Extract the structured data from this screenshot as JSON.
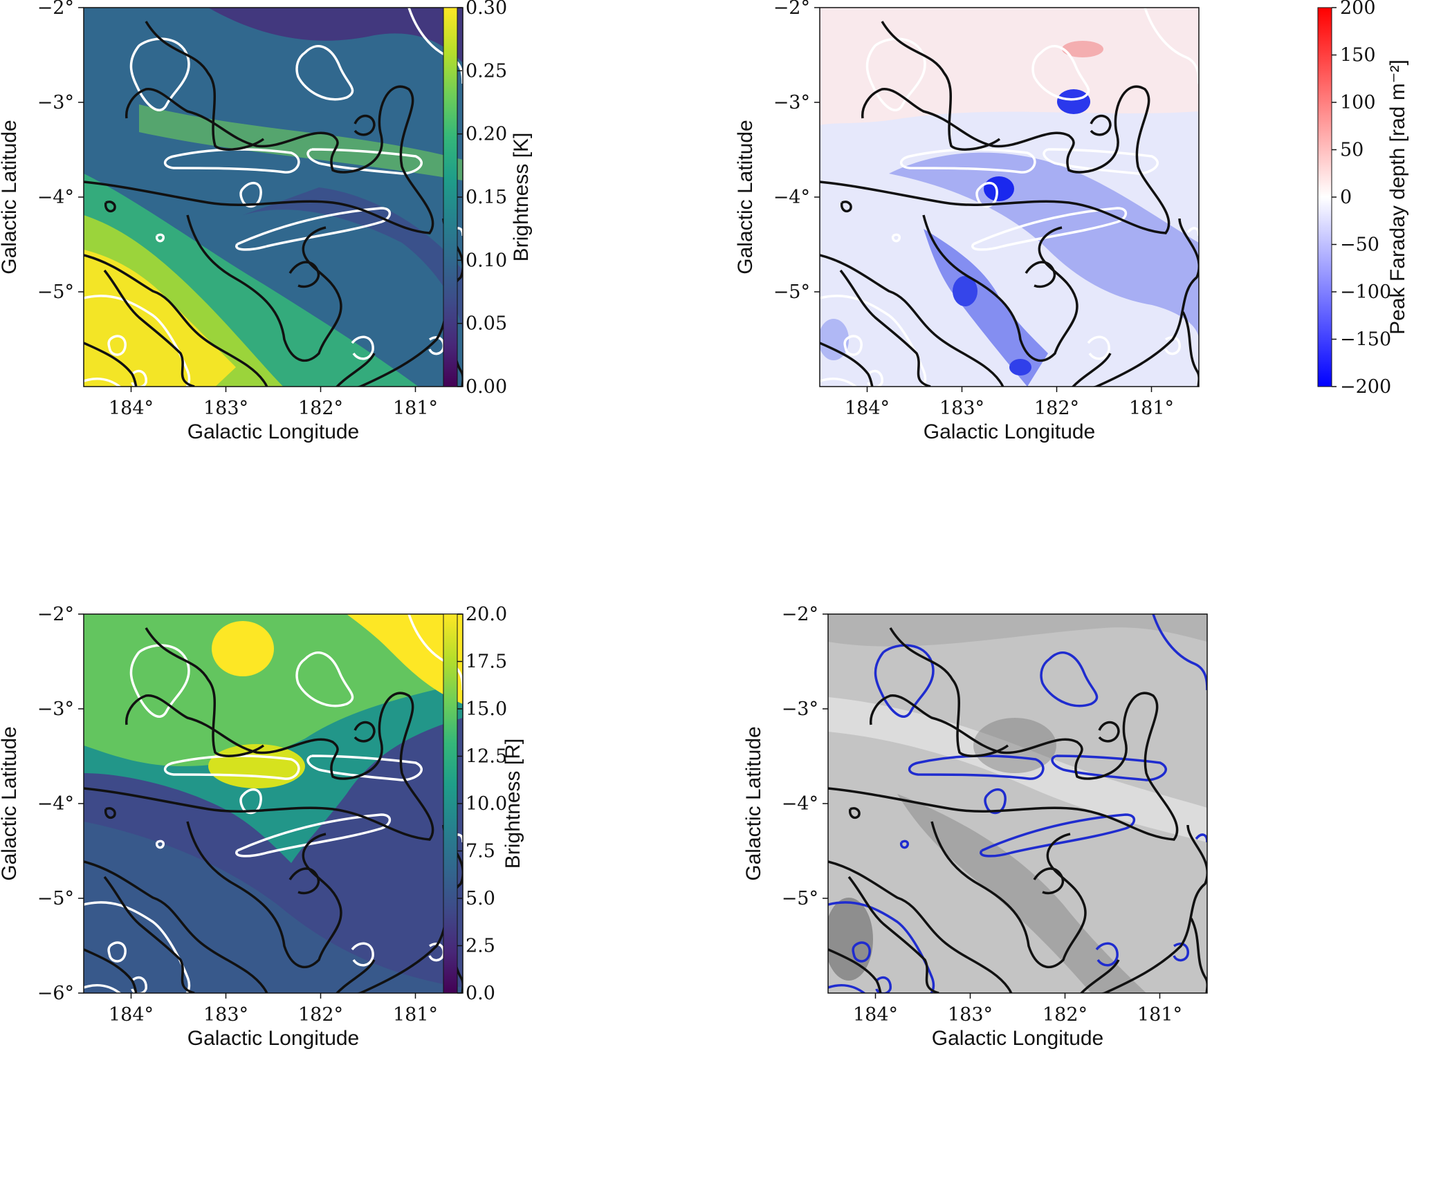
{
  "colors": {
    "contour_black": "#111111",
    "contour_white": "#ffffff",
    "contour_blue": "#1f2ccf",
    "viridis": [
      "#440154",
      "#482878",
      "#3e4a89",
      "#31688e",
      "#26828e",
      "#1f9e89",
      "#35b779",
      "#6ece58",
      "#b5de2b",
      "#fde725"
    ],
    "bwr": [
      "#0000ff",
      "#ffffff",
      "#ff0000"
    ],
    "gray": [
      "#000000",
      "#ffffff"
    ]
  },
  "chart_data": [
    {
      "id": "panel-top-left",
      "type": "heatmap",
      "title": "",
      "xlabel": "Galactic Longitude",
      "ylabel": "Galactic Latitude",
      "xlim": [
        184.5,
        180.5
      ],
      "ylim": [
        -6.0,
        -2.0
      ],
      "xticks": [
        184,
        183,
        182,
        181
      ],
      "xtick_labels": [
        "184°",
        "183°",
        "182°",
        "181°"
      ],
      "yticks": [
        -2,
        -3,
        -4,
        -5
      ],
      "ytick_labels": [
        "−2°",
        "−3°",
        "−4°",
        "−5°"
      ],
      "colormap": "viridis",
      "colorbar": {
        "label": "Brightness [K]",
        "range": [
          0.0,
          0.3
        ],
        "ticks": [
          0.0,
          0.05,
          0.1,
          0.15,
          0.2,
          0.25,
          0.3
        ],
        "tick_labels": [
          "0.00",
          "0.05",
          "0.10",
          "0.15",
          "0.20",
          "0.25",
          "0.30"
        ]
      },
      "contours": [
        "black",
        "white"
      ]
    },
    {
      "id": "panel-top-right",
      "type": "heatmap",
      "title": "",
      "xlabel": "Galactic Longitude",
      "ylabel": "Galactic Latitude",
      "xlim": [
        184.5,
        180.5
      ],
      "ylim": [
        -6.0,
        -2.0
      ],
      "xticks": [
        184,
        183,
        182,
        181
      ],
      "xtick_labels": [
        "184°",
        "183°",
        "182°",
        "181°"
      ],
      "yticks": [
        -2,
        -3,
        -4,
        -5
      ],
      "ytick_labels": [
        "−2°",
        "−3°",
        "−4°",
        "−5°"
      ],
      "colormap": "bwr",
      "colorbar": {
        "label": "Peak Faraday depth [rad m⁻²]",
        "range": [
          -200,
          200
        ],
        "ticks": [
          -200,
          -150,
          -100,
          -50,
          0,
          50,
          100,
          150,
          200
        ],
        "tick_labels": [
          "−200",
          "−150",
          "−100",
          "−50",
          "0",
          "50",
          "100",
          "150",
          "200"
        ]
      },
      "contours": [
        "black",
        "white"
      ]
    },
    {
      "id": "panel-bottom-left",
      "type": "heatmap",
      "title": "",
      "xlabel": "Galactic Longitude",
      "ylabel": "Galactic Latitude",
      "xlim": [
        184.5,
        180.5
      ],
      "ylim": [
        -6.0,
        -2.0
      ],
      "xticks": [
        184,
        183,
        182,
        181
      ],
      "xtick_labels": [
        "184°",
        "183°",
        "182°",
        "181°"
      ],
      "yticks": [
        -2,
        -3,
        -4,
        -5,
        -6
      ],
      "ytick_labels": [
        "−2°",
        "−3°",
        "−4°",
        "−5°",
        "−6°"
      ],
      "colormap": "viridis",
      "colorbar": {
        "label": "Brightness [R]",
        "range": [
          0.0,
          20.0
        ],
        "ticks": [
          0.0,
          2.5,
          5.0,
          7.5,
          10.0,
          12.5,
          15.0,
          17.5,
          20.0
        ],
        "tick_labels": [
          "0.0",
          "2.5",
          "5.0",
          "7.5",
          "10.0",
          "12.5",
          "15.0",
          "17.5",
          "20.0"
        ]
      },
      "contours": [
        "black",
        "white"
      ]
    },
    {
      "id": "panel-bottom-right",
      "type": "heatmap",
      "title": "",
      "xlabel": "Galactic Longitude",
      "ylabel": "Galactic Latitude",
      "xlim": [
        184.5,
        180.5
      ],
      "ylim": [
        -6.0,
        -2.0
      ],
      "xticks": [
        184,
        183,
        182,
        181
      ],
      "xtick_labels": [
        "184°",
        "183°",
        "182°",
        "181°"
      ],
      "yticks": [
        -2,
        -3,
        -4,
        -5
      ],
      "ytick_labels": [
        "−2°",
        "−3°",
        "−4°",
        "−5°"
      ],
      "colormap": "gray",
      "colorbar": null,
      "contours": [
        "black",
        "blue"
      ]
    }
  ]
}
